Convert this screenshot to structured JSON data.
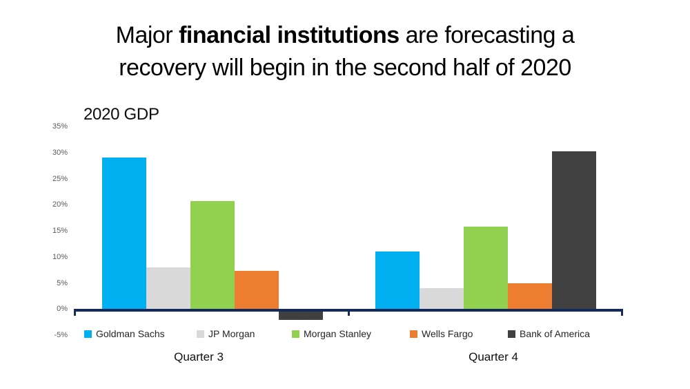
{
  "title": {
    "part1": "Major ",
    "part2_bold": "financial institutions",
    "part3": " are forecasting a",
    "line2": "recovery will begin in the second half of 2020"
  },
  "chart_data": {
    "type": "bar",
    "title": "2020 GDP",
    "categories": [
      "Quarter 3",
      "Quarter 4"
    ],
    "series": [
      {
        "name": "Goldman Sachs",
        "color": "#00B0F0",
        "values": [
          29,
          11
        ]
      },
      {
        "name": "JP Morgan",
        "color": "#D9D9D9",
        "values": [
          8,
          4
        ]
      },
      {
        "name": "Morgan Stanley",
        "color": "#92D050",
        "values": [
          20.7,
          15.8
        ]
      },
      {
        "name": "Wells Fargo",
        "color": "#ED7D31",
        "values": [
          7.3,
          5
        ]
      },
      {
        "name": "Bank of America",
        "color": "#404040",
        "values": [
          -2,
          30.2
        ]
      }
    ],
    "ylim": [
      -5,
      35
    ],
    "yticks": [
      35,
      30,
      25,
      20,
      15,
      10,
      5,
      0,
      -5
    ],
    "ytick_labels": [
      "35%",
      "30%",
      "25%",
      "20%",
      "15%",
      "10%",
      "5%",
      "0%",
      "-5%"
    ],
    "grid": false,
    "legend_position": "bottom",
    "axis_color": "#132A5E",
    "ylabel_color": "#595959"
  }
}
